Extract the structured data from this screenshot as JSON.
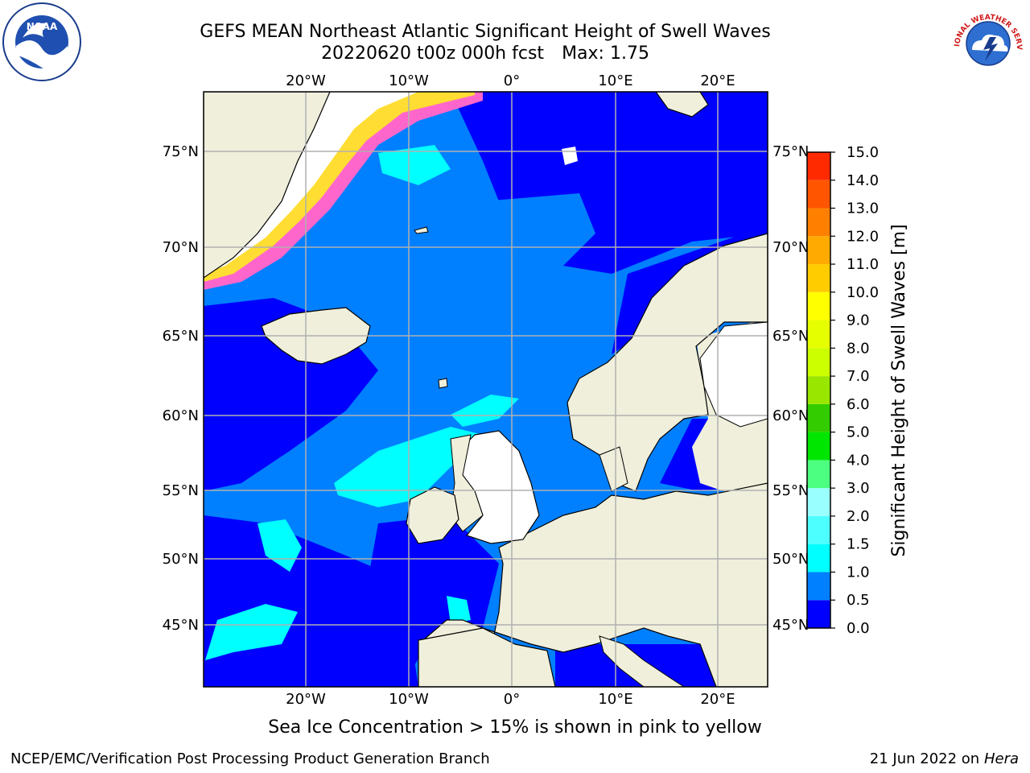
{
  "header": {
    "title": "GEFS MEAN Northeast Atlantic Significant Height of Swell Waves",
    "run": "20220620 t00z 000h fcst",
    "max_label": "Max: 1.75"
  },
  "logos": {
    "left": {
      "icon": "noaa-logo-icon",
      "text": "NOAA"
    },
    "right": {
      "icon": "nws-logo-icon",
      "text": "NATIONAL WEATHER SERVICE"
    }
  },
  "map": {
    "top_lon_labels": [
      "20°W",
      "10°W",
      "0°",
      "10°E",
      "20°E"
    ],
    "bottom_lon_labels": [
      "20°W",
      "10°W",
      "0°",
      "10°E",
      "20°E"
    ],
    "left_lat_labels": [
      "75°N",
      "70°N",
      "65°N",
      "60°N",
      "55°N",
      "50°N",
      "45°N"
    ],
    "right_lat_labels": [
      "75°N",
      "70°N",
      "65°N",
      "60°N",
      "55°N",
      "50°N",
      "45°N"
    ],
    "colors": {
      "land": "#efefdc",
      "ocean_low": "#0000ff",
      "ocean_mid": "#0080ff",
      "ocean_high": "#00ffff",
      "ice_pink": "#ff66cc",
      "ice_yellow": "#ffdd33",
      "grid": "#b0b0b0"
    }
  },
  "colorbar": {
    "label": "Significant Height of Swell Waves [m]",
    "ticks": [
      "0.0",
      "0.5",
      "1.0",
      "1.5",
      "2.0",
      "3.0",
      "4.0",
      "5.0",
      "6.0",
      "7.0",
      "8.0",
      "9.0",
      "10.0",
      "11.0",
      "12.0",
      "13.0",
      "14.0",
      "15.0"
    ],
    "colors": [
      "#0000ff",
      "#0080ff",
      "#00ffff",
      "#4dffff",
      "#99ffff",
      "#4cff80",
      "#00e600",
      "#33cc00",
      "#99e600",
      "#ccff00",
      "#e6ff00",
      "#ffff00",
      "#ffcc00",
      "#ffaa00",
      "#ff8000",
      "#ff5500",
      "#ff2a00",
      "#ff0000"
    ]
  },
  "footer": {
    "ice_note": "Sea Ice Concentration > 15% is shown in pink to yellow",
    "credit": "NCEP/EMC/Verification Post Processing Product Generation Branch",
    "date": "21 Jun 2022 on",
    "host": "Hera"
  }
}
